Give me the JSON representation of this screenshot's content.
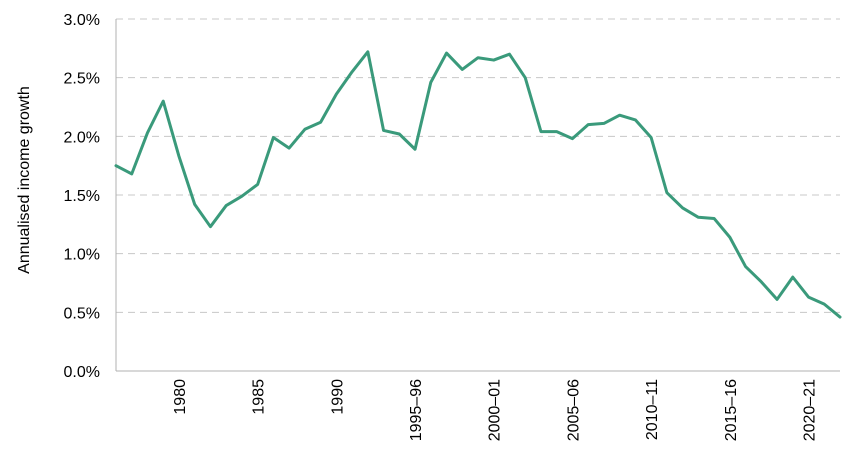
{
  "chart_data": {
    "type": "line",
    "title": "",
    "xlabel": "",
    "ylabel": "Annualised income growth",
    "ylim": [
      0,
      3.0
    ],
    "yticks": [
      "0.0%",
      "0.5%",
      "1.0%",
      "1.5%",
      "2.0%",
      "2.5%",
      "3.0%"
    ],
    "grid": "horizontal-dashed",
    "line_color": "#3a9a7b",
    "xticks": [
      {
        "index": 4,
        "label": "1980"
      },
      {
        "index": 9,
        "label": "1985"
      },
      {
        "index": 14,
        "label": "1990"
      },
      {
        "index": 19,
        "label": "1995–96"
      },
      {
        "index": 24,
        "label": "2000–01"
      },
      {
        "index": 29,
        "label": "2005–06"
      },
      {
        "index": 34,
        "label": "2010–11"
      },
      {
        "index": 39,
        "label": "2015–16"
      },
      {
        "index": 44,
        "label": "2020–21"
      }
    ],
    "series": [
      {
        "values": [
          1.75,
          1.68,
          2.03,
          2.3,
          1.83,
          1.42,
          1.23,
          1.41,
          1.49,
          1.59,
          1.99,
          1.9,
          2.06,
          2.12,
          2.36,
          2.55,
          2.72,
          2.05,
          2.02,
          1.89,
          2.46,
          2.71,
          2.57,
          2.67,
          2.65,
          2.7,
          2.5,
          2.04,
          2.04,
          1.98,
          2.1,
          2.11,
          2.18,
          2.14,
          1.99,
          1.52,
          1.39,
          1.31,
          1.3,
          1.14,
          0.89,
          0.76,
          0.61,
          0.8,
          0.63,
          0.57,
          0.46
        ]
      }
    ]
  }
}
